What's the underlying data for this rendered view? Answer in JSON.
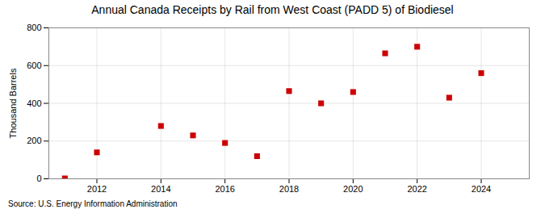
{
  "chart_data": {
    "type": "scatter",
    "title": "Annual Canada Receipts by Rail from West Coast (PADD 5) of Biodiesel",
    "ylabel": "Thousand Barrels",
    "source": "Source: U.S. Energy Information Administration",
    "x": [
      2011,
      2012,
      2014,
      2015,
      2016,
      2017,
      2018,
      2019,
      2020,
      2021,
      2022,
      2023,
      2024
    ],
    "values": [
      2,
      140,
      280,
      230,
      190,
      120,
      465,
      400,
      460,
      665,
      700,
      430,
      560
    ],
    "xlim": [
      2010.5,
      2025.5
    ],
    "xticks": [
      2012,
      2014,
      2016,
      2018,
      2020,
      2022,
      2024
    ],
    "ylim": [
      0,
      800
    ],
    "yticks": [
      0,
      200,
      400,
      600,
      800
    ],
    "color": "#cc0000",
    "marker": "square",
    "grid": true
  }
}
